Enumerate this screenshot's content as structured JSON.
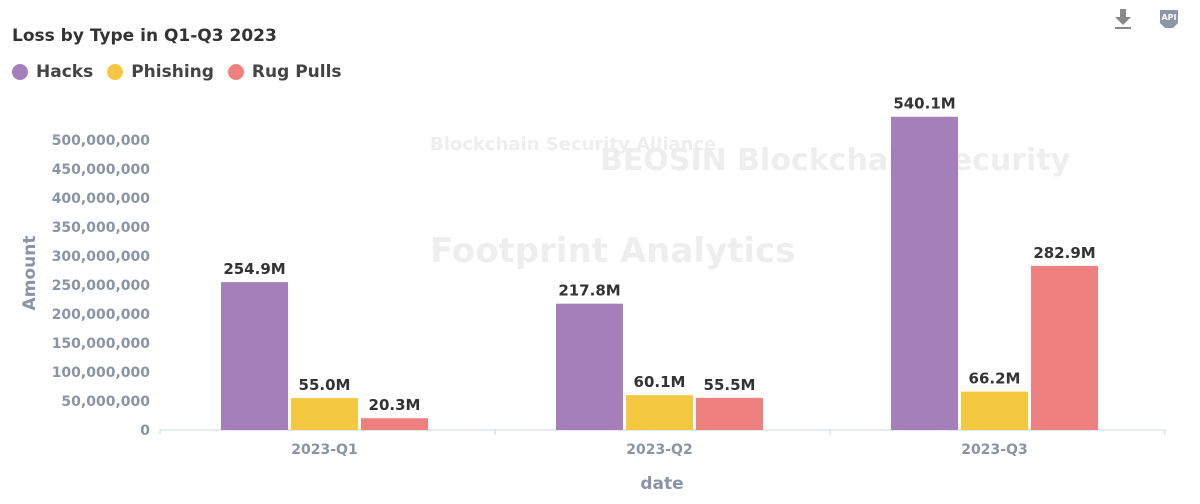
{
  "toolbar": {
    "download_icon": "download-icon",
    "api_icon": "api-icon",
    "api_label": "API"
  },
  "watermarks": [
    "Blockchain Security Alliance",
    "BEOSIN Blockchain Security",
    "Footprint Analytics"
  ],
  "colors": {
    "Hacks": "#a57fba",
    "Phishing": "#f5c842",
    "Rug Pulls": "#ef8080",
    "axis_text": "#8a94a6"
  },
  "chart_data": {
    "type": "bar",
    "title": "Loss by Type in Q1-Q3 2023",
    "xlabel": "date",
    "ylabel": "Amount",
    "categories": [
      "2023-Q1",
      "2023-Q2",
      "2023-Q3"
    ],
    "series": [
      {
        "name": "Hacks",
        "values": [
          254900000,
          217800000,
          540100000
        ],
        "labels": [
          "254.9M",
          "217.8M",
          "540.1M"
        ]
      },
      {
        "name": "Phishing",
        "values": [
          55000000,
          60100000,
          66200000
        ],
        "labels": [
          "55.0M",
          "60.1M",
          "66.2M"
        ]
      },
      {
        "name": "Rug Pulls",
        "values": [
          20300000,
          55500000,
          282900000
        ],
        "labels": [
          "20.3M",
          "55.5M",
          "282.9M"
        ]
      }
    ],
    "yticks": [
      "0",
      "50,000,000",
      "100,000,000",
      "150,000,000",
      "200,000,000",
      "250,000,000",
      "300,000,000",
      "350,000,000",
      "400,000,000",
      "450,000,000",
      "500,000,000"
    ],
    "ylim": [
      0,
      540100000
    ],
    "grid": false,
    "legend_position": "top-left"
  }
}
